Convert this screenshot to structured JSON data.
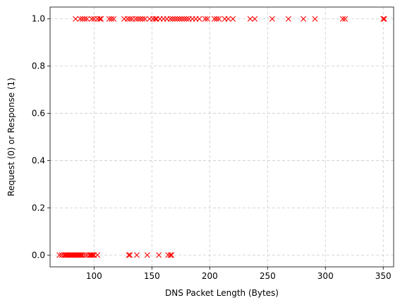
{
  "chart_data": {
    "type": "scatter",
    "title": "",
    "xlabel": "DNS Packet Length (Bytes)",
    "ylabel": "Request (0) or Response (1)",
    "xlim": [
      62,
      359
    ],
    "ylim": [
      -0.05,
      1.05
    ],
    "xticks": [
      100,
      150,
      200,
      250,
      300,
      350
    ],
    "xtick_labels": [
      "100",
      "150",
      "200",
      "250",
      "300",
      "350"
    ],
    "yticks": [
      0.0,
      0.2,
      0.4,
      0.6,
      0.8,
      1.0
    ],
    "ytick_labels": [
      "0.0",
      "0.2",
      "0.4",
      "0.6",
      "0.8",
      "1.0"
    ],
    "grid": true,
    "marker": "x",
    "marker_color": "#ff0000",
    "series": [
      {
        "x": [
          70,
          72,
          74,
          75,
          76,
          77,
          78,
          79,
          80,
          81,
          82,
          83,
          84,
          85,
          86,
          87,
          88,
          89,
          90,
          92,
          94,
          96,
          97,
          98,
          99,
          100,
          103,
          130,
          131,
          137,
          146,
          156,
          164,
          166,
          167
        ],
        "y": [
          0,
          0,
          0,
          0,
          0,
          0,
          0,
          0,
          0,
          0,
          0,
          0,
          0,
          0,
          0,
          0,
          0,
          0,
          0,
          0,
          0,
          0,
          0,
          0,
          0,
          0,
          0,
          0,
          0,
          0,
          0,
          0,
          0,
          0,
          0
        ]
      },
      {
        "x": [
          84,
          88,
          90,
          92,
          94,
          98,
          100,
          103,
          105,
          106,
          113,
          115,
          117,
          126,
          129,
          131,
          133,
          136,
          138,
          140,
          142,
          144,
          148,
          151,
          153,
          154,
          157,
          160,
          163,
          166,
          168,
          170,
          172,
          174,
          176,
          178,
          180,
          182,
          185,
          188,
          191,
          196,
          198,
          204,
          206,
          208,
          213,
          216,
          220,
          235,
          239,
          254,
          268,
          281,
          291,
          315,
          317,
          350,
          351
        ],
        "y": [
          1,
          1,
          1,
          1,
          1,
          1,
          1,
          1,
          1,
          1,
          1,
          1,
          1,
          1,
          1,
          1,
          1,
          1,
          1,
          1,
          1,
          1,
          1,
          1,
          1,
          1,
          1,
          1,
          1,
          1,
          1,
          1,
          1,
          1,
          1,
          1,
          1,
          1,
          1,
          1,
          1,
          1,
          1,
          1,
          1,
          1,
          1,
          1,
          1,
          1,
          1,
          1,
          1,
          1,
          1,
          1,
          1,
          1,
          1
        ]
      }
    ]
  }
}
